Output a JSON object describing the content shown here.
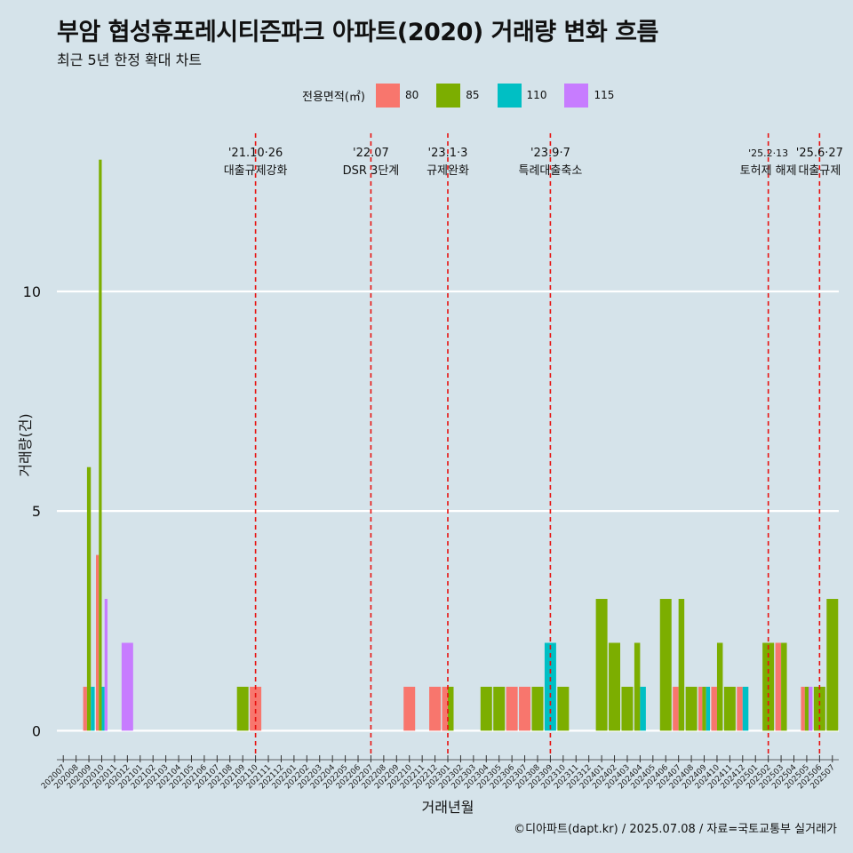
{
  "title": "부암 협성휴포레시티즌파크 아파트(2020) 거래량 변화 흐름",
  "subtitle": "최근 5년 한정 확대 차트",
  "caption": "©디아파트(dapt.kr) / 2025.07.08 / 자료=국토교통부 실거래가",
  "legend": {
    "title": "전용면적(㎡)",
    "items": [
      {
        "label": "80",
        "color": "#f8766d"
      },
      {
        "label": "85",
        "color": "#7cae00"
      },
      {
        "label": "110",
        "color": "#00bfc4"
      },
      {
        "label": "115",
        "color": "#c77cff"
      }
    ]
  },
  "chart_data": {
    "type": "bar",
    "title": "부암 협성휴포레시티즌파크 아파트(2020) 거래량 변화 흐름",
    "subtitle": "최근 5년 한정 확대 차트",
    "xlabel": "거래년월",
    "ylabel": "거래량(건)",
    "ylim": [
      -0.6,
      13.6
    ],
    "yticks": [
      0,
      5,
      10
    ],
    "grid": true,
    "legend_position": "top",
    "categories": [
      "202007",
      "202008",
      "202009",
      "202010",
      "202011",
      "202012",
      "202101",
      "202102",
      "202103",
      "202104",
      "202105",
      "202106",
      "202107",
      "202108",
      "202109",
      "202110",
      "202111",
      "202112",
      "202201",
      "202202",
      "202203",
      "202204",
      "202205",
      "202206",
      "202207",
      "202208",
      "202209",
      "202210",
      "202211",
      "202212",
      "202301",
      "202302",
      "202303",
      "202304",
      "202305",
      "202306",
      "202307",
      "202308",
      "202309",
      "202310",
      "202311",
      "202312",
      "202401",
      "202402",
      "202403",
      "202404",
      "202405",
      "202406",
      "202407",
      "202408",
      "202409",
      "202410",
      "202411",
      "202412",
      "202501",
      "202502",
      "202503",
      "202504",
      "202505",
      "202506",
      "202507"
    ],
    "series": [
      {
        "name": "80",
        "color": "#f8766d",
        "points": [
          [
            "202009",
            1
          ],
          [
            "202010",
            4
          ],
          [
            "202110",
            1
          ],
          [
            "202210",
            1
          ],
          [
            "202212",
            1
          ],
          [
            "202301",
            1
          ],
          [
            "202306",
            1
          ],
          [
            "202307",
            1
          ],
          [
            "202407",
            1
          ],
          [
            "202409",
            1
          ],
          [
            "202410",
            1
          ],
          [
            "202412",
            1
          ],
          [
            "202503",
            2
          ],
          [
            "202505",
            1
          ]
        ]
      },
      {
        "name": "85",
        "color": "#7cae00",
        "points": [
          [
            "202009",
            6
          ],
          [
            "202010",
            13
          ],
          [
            "202109",
            1
          ],
          [
            "202301",
            1
          ],
          [
            "202304",
            1
          ],
          [
            "202305",
            1
          ],
          [
            "202308",
            1
          ],
          [
            "202310",
            1
          ],
          [
            "202401",
            3
          ],
          [
            "202402",
            2
          ],
          [
            "202403",
            1
          ],
          [
            "202404",
            2
          ],
          [
            "202406",
            3
          ],
          [
            "202407",
            3
          ],
          [
            "202408",
            1
          ],
          [
            "202409",
            1
          ],
          [
            "202410",
            2
          ],
          [
            "202411",
            1
          ],
          [
            "202502",
            2
          ],
          [
            "202503",
            2
          ],
          [
            "202505",
            1
          ],
          [
            "202506",
            1
          ],
          [
            "202507",
            3
          ]
        ]
      },
      {
        "name": "110",
        "color": "#00bfc4",
        "points": [
          [
            "202009",
            1
          ],
          [
            "202010",
            1
          ],
          [
            "202309",
            2
          ],
          [
            "202404",
            1
          ],
          [
            "202409",
            1
          ],
          [
            "202412",
            1
          ]
        ]
      },
      {
        "name": "115",
        "color": "#c77cff",
        "points": [
          [
            "202010",
            3
          ],
          [
            "202012",
            2
          ],
          [
            "202505",
            1
          ]
        ]
      }
    ],
    "annotations": [
      {
        "x": "202110",
        "date": "'21.10·26",
        "label": "대출규제강화"
      },
      {
        "x": "202207",
        "date": "'22.07",
        "label": "DSR 3단계"
      },
      {
        "x": "202301",
        "date": "'23.1·3",
        "label": "규제완화"
      },
      {
        "x": "202309",
        "date": "'23.9·7",
        "label": "특례대출축소"
      },
      {
        "x": "202502",
        "date": "'25.2·13",
        "label": "토허제 해제"
      },
      {
        "x": "202506",
        "date": "'25.6·27",
        "label": "대출규제"
      }
    ]
  }
}
